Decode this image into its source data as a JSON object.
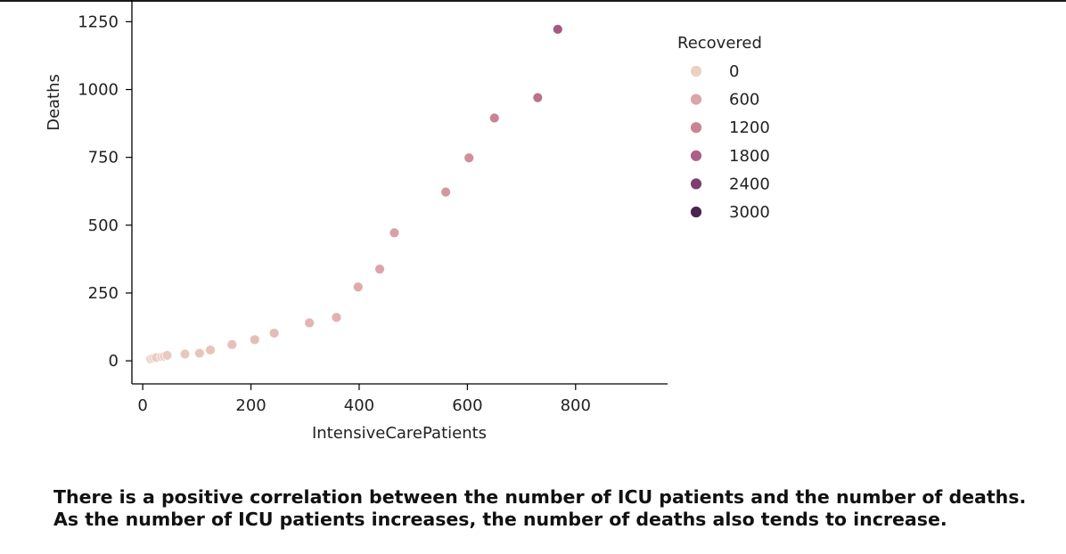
{
  "chart_data": {
    "type": "scatter",
    "xlabel": "IntensiveCarePatients",
    "ylabel": "Deaths",
    "xlim": [
      -20,
      970
    ],
    "ylim": [
      -85,
      1330
    ],
    "xticks": [
      0,
      200,
      400,
      600,
      800
    ],
    "yticks": [
      0,
      250,
      500,
      750,
      1000,
      1250
    ],
    "grid": false,
    "legend": {
      "title": "Recovered",
      "placement": "right",
      "entries": [
        {
          "label": "0",
          "color": "#ecd0c2"
        },
        {
          "label": "600",
          "color": "#dca5a8"
        },
        {
          "label": "1200",
          "color": "#c98494"
        },
        {
          "label": "1800",
          "color": "#ad5e86"
        },
        {
          "label": "2400",
          "color": "#7e3e72"
        },
        {
          "label": "3000",
          "color": "#4a2550"
        }
      ]
    },
    "series": [
      {
        "points": [
          {
            "x": 15,
            "y": 7,
            "hue": 20
          },
          {
            "x": 20,
            "y": 10,
            "hue": 30
          },
          {
            "x": 25,
            "y": 12,
            "hue": 40
          },
          {
            "x": 35,
            "y": 15,
            "hue": 60
          },
          {
            "x": 40,
            "y": 17,
            "hue": 80
          },
          {
            "x": 45,
            "y": 20,
            "hue": 90
          },
          {
            "x": 78,
            "y": 25,
            "hue": 120
          },
          {
            "x": 105,
            "y": 28,
            "hue": 150
          },
          {
            "x": 125,
            "y": 40,
            "hue": 180
          },
          {
            "x": 165,
            "y": 60,
            "hue": 220
          },
          {
            "x": 207,
            "y": 78,
            "hue": 260
          },
          {
            "x": 243,
            "y": 102,
            "hue": 300
          },
          {
            "x": 308,
            "y": 140,
            "hue": 370
          },
          {
            "x": 358,
            "y": 160,
            "hue": 420
          },
          {
            "x": 398,
            "y": 272,
            "hue": 520
          },
          {
            "x": 438,
            "y": 338,
            "hue": 600
          },
          {
            "x": 465,
            "y": 472,
            "hue": 700
          },
          {
            "x": 560,
            "y": 622,
            "hue": 850
          },
          {
            "x": 603,
            "y": 748,
            "hue": 1000
          },
          {
            "x": 650,
            "y": 895,
            "hue": 1200
          },
          {
            "x": 730,
            "y": 970,
            "hue": 1500
          },
          {
            "x": 767,
            "y": 1222,
            "hue": 1900
          }
        ]
      }
    ]
  },
  "caption": "There is a positive correlation between the number of ICU patients and the number of deaths. As the number of ICU patients increases, the number of deaths also tends to increase."
}
